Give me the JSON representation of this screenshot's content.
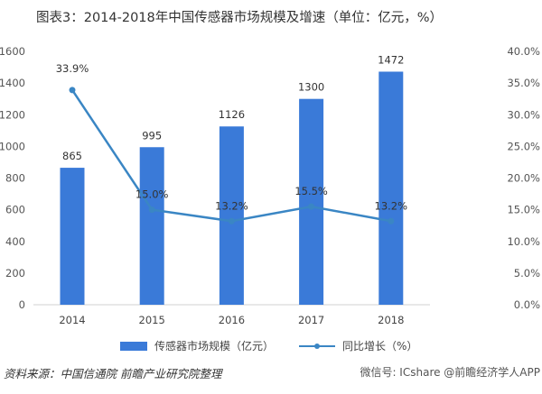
{
  "chart_data": {
    "type": "bar+line",
    "title": "图表3：2014-2018年中国传感器市场规模及增速（单位：亿元，%）",
    "categories": [
      "2014",
      "2015",
      "2016",
      "2017",
      "2018"
    ],
    "series": [
      {
        "name": "传感器市场规模（亿元）",
        "type": "bar",
        "axis": "left",
        "values": [
          865,
          995,
          1126,
          1300,
          1472
        ],
        "labels": [
          "865",
          "995",
          "1126",
          "1300",
          "1472"
        ],
        "color": "#3a7ad8"
      },
      {
        "name": "同比增长（%）",
        "type": "line",
        "axis": "right",
        "values": [
          33.9,
          15.0,
          13.2,
          15.5,
          13.2
        ],
        "labels": [
          "33.9%",
          "15.0%",
          "13.2%",
          "15.5%",
          "13.2%"
        ],
        "color": "#3a86c4"
      }
    ],
    "y_left": {
      "range": [
        0,
        1600
      ],
      "ticks": [
        "0",
        "200",
        "400",
        "600",
        "800",
        "1000",
        "1200",
        "1400",
        "1600"
      ]
    },
    "y_right": {
      "range": [
        0,
        40
      ],
      "ticks": [
        "0.0%",
        "5.0%",
        "10.0%",
        "15.0%",
        "20.0%",
        "25.0%",
        "30.0%",
        "35.0%",
        "40.0%"
      ]
    },
    "grid": false,
    "legend": "bottom"
  },
  "source": "资料来源：中国信通院 前瞻产业研究院整理",
  "watermark": "微信号: ICshare  @前瞻经济学人APP"
}
